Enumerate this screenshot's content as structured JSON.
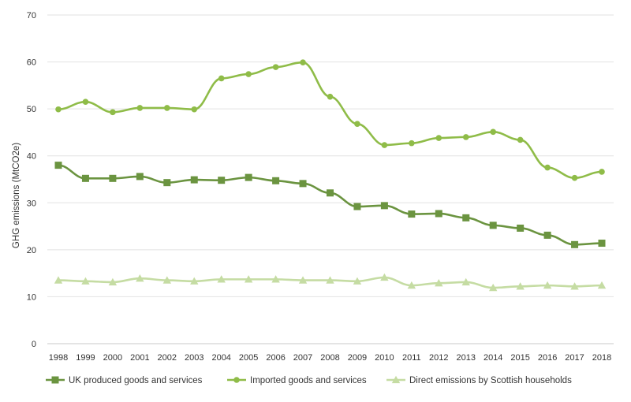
{
  "chart_data": {
    "type": "line",
    "title": "",
    "xlabel": "",
    "ylabel": "GHG emissions (MtCO2e)",
    "ylim": [
      0,
      70
    ],
    "yticks": [
      0,
      10,
      20,
      30,
      40,
      50,
      60,
      70
    ],
    "grid": "horizontal",
    "legend": "bottom",
    "categories": [
      "1998",
      "1999",
      "2000",
      "2001",
      "2002",
      "2003",
      "2004",
      "2005",
      "2006",
      "2007",
      "2008",
      "2009",
      "2010",
      "2011",
      "2012",
      "2013",
      "2014",
      "2015",
      "2016",
      "2017",
      "2018"
    ],
    "series": [
      {
        "name": "UK produced goods and services",
        "marker": "square",
        "color": "#6b9440",
        "values": [
          38.0,
          35.2,
          35.2,
          35.6,
          34.3,
          34.9,
          34.8,
          35.4,
          34.7,
          34.1,
          32.1,
          29.2,
          29.4,
          27.6,
          27.7,
          26.8,
          25.2,
          24.6,
          23.1,
          21.1,
          21.4
        ]
      },
      {
        "name": "Imported goods and services",
        "marker": "circle",
        "color": "#8fbc48",
        "values": [
          49.9,
          51.5,
          49.3,
          50.2,
          50.2,
          49.9,
          56.5,
          57.4,
          58.9,
          59.9,
          52.6,
          46.8,
          42.3,
          42.7,
          43.8,
          44.0,
          45.1,
          43.4,
          37.5,
          35.3,
          36.6
        ]
      },
      {
        "name": "Direct emissions by Scottish households",
        "marker": "triangle",
        "color": "#c5dca3",
        "values": [
          13.5,
          13.3,
          13.1,
          13.9,
          13.5,
          13.3,
          13.7,
          13.7,
          13.7,
          13.5,
          13.5,
          13.3,
          14.1,
          12.4,
          12.9,
          13.1,
          11.9,
          12.2,
          12.4,
          12.2,
          12.4
        ]
      }
    ]
  }
}
